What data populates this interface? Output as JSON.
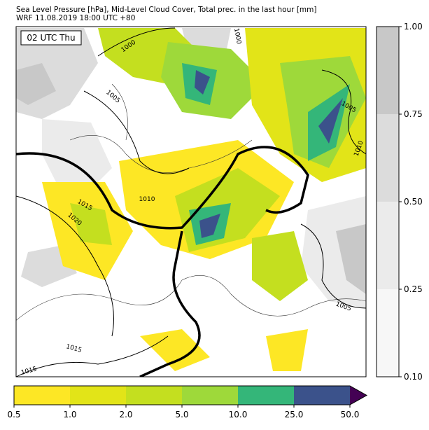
{
  "header": {
    "title": "Sea Level Pressure [hPa], Mid-Level Cloud Cover, Total prec. in the last hour [mm]",
    "subtitle": "WRF 11.08.2019 18:00 UTC +80"
  },
  "map": {
    "time_label": "02 UTC Thu",
    "contour_labels": [
      "1000",
      "1000",
      "1005",
      "1005",
      "1010",
      "1010",
      "1015",
      "1020",
      "1005",
      "1015",
      "1015"
    ]
  },
  "cloud_colorbar": {
    "ticks": [
      {
        "value": 0.1,
        "label": "0.10"
      },
      {
        "value": 0.25,
        "label": "0.25"
      },
      {
        "value": 0.5,
        "label": "0.50"
      },
      {
        "value": 0.75,
        "label": "0.75"
      },
      {
        "value": 1,
        "label": "1.00"
      }
    ],
    "colors": [
      "#f7f7f7",
      "#ebebeb",
      "#dcdcdc",
      "#c8c8c8"
    ]
  },
  "precip_colorbar": {
    "ticks": [
      0.5,
      {
        "value": 1,
        "label": "1.0"
      },
      {
        "value": 2,
        "label": "2.0"
      },
      {
        "value": 5,
        "label": "5.0"
      },
      {
        "value": 10,
        "label": "10.0"
      },
      {
        "value": 25,
        "label": "25.0"
      },
      {
        "value": 50,
        "label": "50.0"
      }
    ],
    "colors": [
      "#fde725",
      "#e2e418",
      "#c4df1f",
      "#9ed93a",
      "#34b679",
      "#3b528b"
    ],
    "extend_color": "#440154"
  }
}
